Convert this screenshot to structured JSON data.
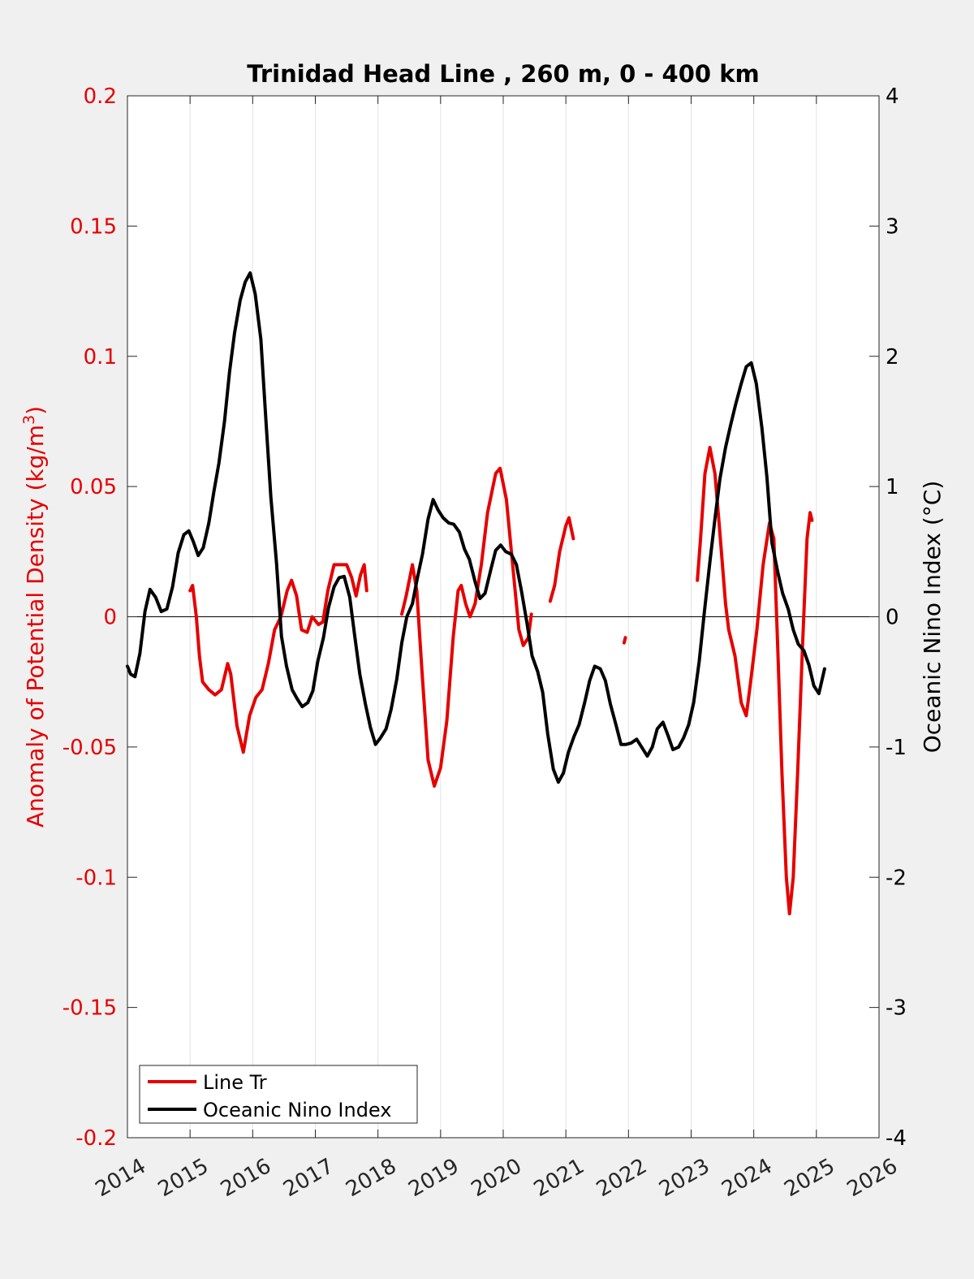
{
  "chart_data": {
    "type": "line",
    "title": "Trinidad Head Line , 260 m, 0 - 400 km",
    "xlim": [
      2014,
      2026
    ],
    "x_ticks": [
      "2014",
      "2015",
      "2016",
      "2017",
      "2018",
      "2019",
      "2020",
      "2021",
      "2022",
      "2023",
      "2024",
      "2025",
      "2026"
    ],
    "y_left": {
      "label_main": "Anomaly of Potential Density (kg/m",
      "label_sup": "3",
      "label_end": ")",
      "ylim": [
        -0.2,
        0.2
      ],
      "ticks": [
        "-0.2",
        "-0.15",
        "-0.1",
        "-0.05",
        "0",
        "0.05",
        "0.1",
        "0.15",
        "0.2"
      ],
      "color": "#e60000"
    },
    "y_right": {
      "label": "Oceanic Nino Index (°C)",
      "ylim": [
        -4,
        4
      ],
      "ticks": [
        "-4",
        "-3",
        "-2",
        "-1",
        "0",
        "1",
        "2",
        "3",
        "4"
      ],
      "color": "#000000"
    },
    "grid": "vertical",
    "zero_line": true,
    "legend_position": "bottom-left",
    "series": [
      {
        "name": "Line Tr",
        "axis": "left",
        "color": "#e60000",
        "segments": [
          [
            [
              2015.0,
              0.01
            ],
            [
              2015.04,
              0.012
            ],
            [
              2015.1,
              0.0
            ],
            [
              2015.15,
              -0.015
            ],
            [
              2015.2,
              -0.025
            ],
            [
              2015.3,
              -0.028
            ],
            [
              2015.4,
              -0.03
            ],
            [
              2015.5,
              -0.028
            ],
            [
              2015.6,
              -0.018
            ],
            [
              2015.65,
              -0.022
            ],
            [
              2015.75,
              -0.042
            ],
            [
              2015.85,
              -0.052
            ],
            [
              2015.95,
              -0.038
            ],
            [
              2016.05,
              -0.031
            ],
            [
              2016.15,
              -0.028
            ],
            [
              2016.25,
              -0.018
            ],
            [
              2016.35,
              -0.005
            ],
            [
              2016.45,
              0.0
            ],
            [
              2016.55,
              0.01
            ],
            [
              2016.62,
              0.014
            ],
            [
              2016.7,
              0.008
            ],
            [
              2016.78,
              -0.005
            ],
            [
              2016.87,
              -0.006
            ],
            [
              2016.95,
              0.0
            ],
            [
              2017.05,
              -0.003
            ],
            [
              2017.12,
              -0.002
            ],
            [
              2017.2,
              0.01
            ],
            [
              2017.3,
              0.02
            ],
            [
              2017.4,
              0.02
            ],
            [
              2017.5,
              0.02
            ],
            [
              2017.58,
              0.015
            ],
            [
              2017.65,
              0.008
            ],
            [
              2017.72,
              0.016
            ],
            [
              2017.78,
              0.02
            ],
            [
              2017.82,
              0.01
            ]
          ],
          [
            [
              2018.38,
              0.001
            ],
            [
              2018.45,
              0.008
            ],
            [
              2018.55,
              0.02
            ],
            [
              2018.62,
              0.01
            ],
            [
              2018.7,
              -0.02
            ],
            [
              2018.8,
              -0.055
            ],
            [
              2018.9,
              -0.065
            ],
            [
              2019.0,
              -0.058
            ],
            [
              2019.1,
              -0.04
            ],
            [
              2019.2,
              -0.008
            ],
            [
              2019.28,
              0.01
            ],
            [
              2019.33,
              0.012
            ],
            [
              2019.4,
              0.005
            ],
            [
              2019.47,
              0.0
            ],
            [
              2019.55,
              0.005
            ],
            [
              2019.65,
              0.02
            ],
            [
              2019.75,
              0.04
            ],
            [
              2019.88,
              0.055
            ],
            [
              2019.95,
              0.057
            ],
            [
              2020.05,
              0.045
            ],
            [
              2020.15,
              0.02
            ],
            [
              2020.25,
              -0.005
            ],
            [
              2020.32,
              -0.011
            ],
            [
              2020.4,
              -0.008
            ],
            [
              2020.45,
              0.001
            ]
          ],
          [
            [
              2020.75,
              0.006
            ],
            [
              2020.82,
              0.012
            ],
            [
              2020.9,
              0.025
            ],
            [
              2021.0,
              0.035
            ],
            [
              2021.05,
              0.038
            ],
            [
              2021.12,
              0.03
            ]
          ],
          [
            [
              2021.93,
              -0.01
            ],
            [
              2021.95,
              -0.008
            ]
          ],
          [
            [
              2023.1,
              0.014
            ],
            [
              2023.15,
              0.03
            ],
            [
              2023.22,
              0.055
            ],
            [
              2023.3,
              0.065
            ],
            [
              2023.38,
              0.055
            ],
            [
              2023.45,
              0.035
            ],
            [
              2023.55,
              0.005
            ],
            [
              2023.6,
              -0.005
            ],
            [
              2023.7,
              -0.015
            ],
            [
              2023.8,
              -0.033
            ],
            [
              2023.88,
              -0.038
            ],
            [
              2023.95,
              -0.025
            ],
            [
              2024.05,
              -0.005
            ],
            [
              2024.15,
              0.02
            ],
            [
              2024.25,
              0.036
            ],
            [
              2024.32,
              0.03
            ],
            [
              2024.38,
              -0.01
            ],
            [
              2024.45,
              -0.06
            ],
            [
              2024.52,
              -0.1
            ],
            [
              2024.57,
              -0.114
            ],
            [
              2024.63,
              -0.1
            ],
            [
              2024.7,
              -0.06
            ],
            [
              2024.78,
              -0.01
            ],
            [
              2024.85,
              0.03
            ],
            [
              2024.9,
              0.04
            ],
            [
              2024.93,
              0.037
            ]
          ]
        ]
      },
      {
        "name": "Oceanic Nino Index",
        "axis": "right",
        "color": "#000000",
        "segments": [
          [
            [
              2014.0,
              -0.38
            ],
            [
              2014.05,
              -0.44
            ],
            [
              2014.12,
              -0.46
            ],
            [
              2014.2,
              -0.28
            ],
            [
              2014.28,
              0.04
            ],
            [
              2014.36,
              0.21
            ],
            [
              2014.45,
              0.15
            ],
            [
              2014.54,
              0.04
            ],
            [
              2014.63,
              0.06
            ],
            [
              2014.72,
              0.23
            ],
            [
              2014.81,
              0.49
            ],
            [
              2014.9,
              0.63
            ],
            [
              2014.98,
              0.66
            ],
            [
              2015.05,
              0.58
            ],
            [
              2015.13,
              0.47
            ],
            [
              2015.21,
              0.53
            ],
            [
              2015.3,
              0.72
            ],
            [
              2015.38,
              0.96
            ],
            [
              2015.46,
              1.18
            ],
            [
              2015.55,
              1.5
            ],
            [
              2015.63,
              1.88
            ],
            [
              2015.71,
              2.18
            ],
            [
              2015.8,
              2.43
            ],
            [
              2015.88,
              2.57
            ],
            [
              2015.96,
              2.64
            ],
            [
              2016.04,
              2.48
            ],
            [
              2016.13,
              2.13
            ],
            [
              2016.21,
              1.52
            ],
            [
              2016.29,
              0.92
            ],
            [
              2016.38,
              0.41
            ],
            [
              2016.46,
              -0.15
            ],
            [
              2016.54,
              -0.38
            ],
            [
              2016.63,
              -0.56
            ],
            [
              2016.71,
              -0.63
            ],
            [
              2016.79,
              -0.69
            ],
            [
              2016.88,
              -0.66
            ],
            [
              2016.96,
              -0.57
            ],
            [
              2017.04,
              -0.34
            ],
            [
              2017.13,
              -0.16
            ],
            [
              2017.21,
              0.07
            ],
            [
              2017.3,
              0.23
            ],
            [
              2017.38,
              0.3
            ],
            [
              2017.46,
              0.31
            ],
            [
              2017.55,
              0.15
            ],
            [
              2017.63,
              -0.15
            ],
            [
              2017.71,
              -0.44
            ],
            [
              2017.8,
              -0.67
            ],
            [
              2017.88,
              -0.85
            ],
            [
              2017.96,
              -0.98
            ],
            [
              2018.04,
              -0.93
            ],
            [
              2018.13,
              -0.86
            ],
            [
              2018.21,
              -0.71
            ],
            [
              2018.3,
              -0.48
            ],
            [
              2018.38,
              -0.2
            ],
            [
              2018.46,
              0.0
            ],
            [
              2018.55,
              0.1
            ],
            [
              2018.63,
              0.3
            ],
            [
              2018.71,
              0.48
            ],
            [
              2018.8,
              0.75
            ],
            [
              2018.88,
              0.9
            ],
            [
              2018.96,
              0.82
            ],
            [
              2019.04,
              0.76
            ],
            [
              2019.13,
              0.72
            ],
            [
              2019.21,
              0.71
            ],
            [
              2019.3,
              0.65
            ],
            [
              2019.38,
              0.52
            ],
            [
              2019.46,
              0.44
            ],
            [
              2019.55,
              0.27
            ],
            [
              2019.63,
              0.14
            ],
            [
              2019.71,
              0.18
            ],
            [
              2019.8,
              0.36
            ],
            [
              2019.88,
              0.51
            ],
            [
              2019.96,
              0.55
            ],
            [
              2020.04,
              0.5
            ],
            [
              2020.13,
              0.48
            ],
            [
              2020.21,
              0.4
            ],
            [
              2020.29,
              0.2
            ],
            [
              2020.38,
              -0.05
            ],
            [
              2020.46,
              -0.3
            ],
            [
              2020.55,
              -0.42
            ],
            [
              2020.63,
              -0.58
            ],
            [
              2020.71,
              -0.9
            ],
            [
              2020.8,
              -1.17
            ],
            [
              2020.88,
              -1.27
            ],
            [
              2020.96,
              -1.2
            ],
            [
              2021.04,
              -1.04
            ],
            [
              2021.13,
              -0.92
            ],
            [
              2021.21,
              -0.83
            ],
            [
              2021.3,
              -0.66
            ],
            [
              2021.38,
              -0.49
            ],
            [
              2021.46,
              -0.38
            ],
            [
              2021.55,
              -0.4
            ],
            [
              2021.63,
              -0.49
            ],
            [
              2021.71,
              -0.67
            ],
            [
              2021.8,
              -0.83
            ],
            [
              2021.88,
              -0.98
            ],
            [
              2021.96,
              -0.98
            ],
            [
              2022.04,
              -0.97
            ],
            [
              2022.13,
              -0.94
            ],
            [
              2022.21,
              -1.0
            ],
            [
              2022.3,
              -1.07
            ],
            [
              2022.38,
              -1.0
            ],
            [
              2022.46,
              -0.86
            ],
            [
              2022.55,
              -0.81
            ],
            [
              2022.63,
              -0.91
            ],
            [
              2022.71,
              -1.02
            ],
            [
              2022.8,
              -1.0
            ],
            [
              2022.88,
              -0.93
            ],
            [
              2022.96,
              -0.83
            ],
            [
              2023.04,
              -0.66
            ],
            [
              2023.13,
              -0.34
            ],
            [
              2023.21,
              0.03
            ],
            [
              2023.3,
              0.42
            ],
            [
              2023.38,
              0.75
            ],
            [
              2023.46,
              1.06
            ],
            [
              2023.55,
              1.3
            ],
            [
              2023.63,
              1.47
            ],
            [
              2023.71,
              1.63
            ],
            [
              2023.8,
              1.79
            ],
            [
              2023.88,
              1.92
            ],
            [
              2023.96,
              1.95
            ],
            [
              2024.04,
              1.79
            ],
            [
              2024.13,
              1.45
            ],
            [
              2024.21,
              1.07
            ],
            [
              2024.29,
              0.57
            ],
            [
              2024.38,
              0.35
            ],
            [
              2024.46,
              0.18
            ],
            [
              2024.55,
              0.06
            ],
            [
              2024.63,
              -0.1
            ],
            [
              2024.71,
              -0.21
            ],
            [
              2024.8,
              -0.26
            ],
            [
              2024.88,
              -0.37
            ],
            [
              2024.96,
              -0.53
            ],
            [
              2025.04,
              -0.59
            ],
            [
              2025.13,
              -0.4
            ]
          ]
        ]
      }
    ]
  }
}
